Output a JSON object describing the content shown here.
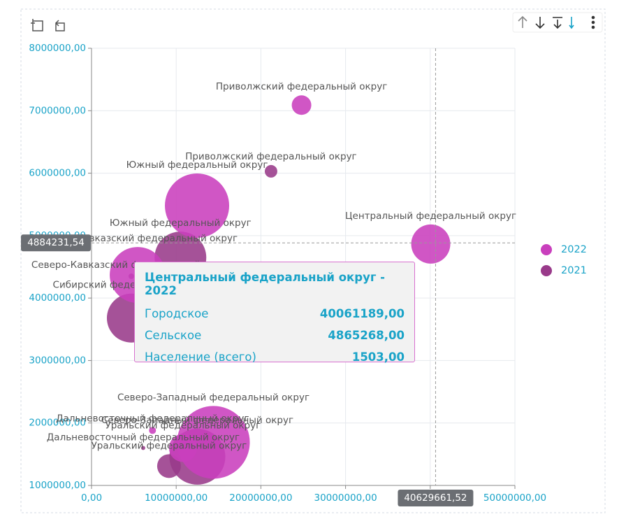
{
  "chart_data": {
    "type": "scatter",
    "xlim": [
      0,
      50000000
    ],
    "ylim": [
      1000000,
      8000000
    ],
    "xticks": [
      {
        "value": 0,
        "label": "0,00"
      },
      {
        "value": 10000000,
        "label": "10000000,00"
      },
      {
        "value": 20000000,
        "label": "20000000,00"
      },
      {
        "value": 30000000,
        "label": "30000000,00"
      },
      {
        "value": 40000000,
        "label": "40000000,00"
      },
      {
        "value": 50000000,
        "label": "50000000,00"
      }
    ],
    "yticks": [
      {
        "value": 1000000,
        "label": "1000000,00"
      },
      {
        "value": 2000000,
        "label": "2000000,00"
      },
      {
        "value": 3000000,
        "label": "3000000,00"
      },
      {
        "value": 4000000,
        "label": "4000000,00"
      },
      {
        "value": 5000000,
        "label": "5000000,00"
      },
      {
        "value": 6000000,
        "label": "6000000,00"
      },
      {
        "value": 7000000,
        "label": "7000000,00"
      },
      {
        "value": 8000000,
        "label": "8000000,00"
      }
    ],
    "grid": true,
    "series": [
      {
        "name": "2022",
        "color": "#c93fbd",
        "labels": [
          "Приволжский федеральный округ",
          "Центральный федеральный округ",
          "Южный федеральный округ",
          "Северо-Кавказский федеральный округ",
          "Северо-Западный федеральный округ",
          "Дальневосточный федеральный округ",
          "Уральский федеральный округ"
        ],
        "x": [
          24800000,
          40061189,
          12460000,
          5450000,
          14400000,
          7200000,
          10800000
        ],
        "values": [
          7090000,
          4865268,
          5480000,
          4370000,
          1690000,
          1880000,
          1600000
        ],
        "sizes": [
          376,
          1503,
          4060,
          3070,
          5190,
          48,
          767
        ]
      },
      {
        "name": "2021",
        "color": "#993a8a",
        "labels": [
          "Приволжский федеральный округ",
          "Южный федеральный округ",
          "Северо-Кавказский федеральный округ",
          "Сибирский федеральный округ",
          "Северо-Западный федеральный округ",
          "Уральский федеральный округ",
          "Дальневосточный федеральный округ"
        ],
        "x": [
          21200000,
          10500000,
          4700000,
          4700000,
          12500000,
          9150000,
          6100000
        ],
        "values": [
          6030000,
          4650000,
          4350000,
          3680000,
          1460000,
          1310000,
          1600000
        ],
        "sizes": [
          155,
          2626,
          30,
          2350,
          3070,
          554,
          17
        ]
      }
    ],
    "legend": "right",
    "crosshair": {
      "x": 40629661.52,
      "x_label": "40629661,52",
      "y": 4884231.54,
      "y_label": "4884231,54"
    },
    "tooltip": {
      "title": "Центральный федеральный округ - 2022",
      "rows": [
        {
          "label": "Городское",
          "value": "40061189,00"
        },
        {
          "label": "Сельское",
          "value": "4865268,00"
        },
        {
          "label": "Население (всего)",
          "value": "1503,00"
        }
      ]
    }
  }
}
